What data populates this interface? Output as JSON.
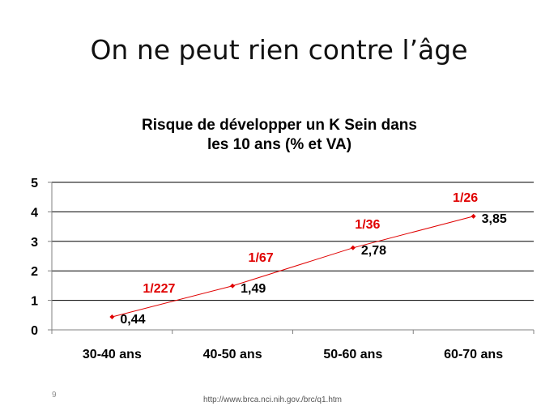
{
  "slide": {
    "title": "On ne peut rien contre l’âge",
    "number": "9",
    "source": "http://www.brca.nci.nih.gov./brc/q1.htm"
  },
  "colors": {
    "series": "#e00000",
    "annotation": "#e00000",
    "gridline": "#000000",
    "text": "#000000"
  },
  "chart_data": {
    "type": "line",
    "title_lines": [
      "Risque de développer un K Sein dans",
      "les 10 ans (% et VA)"
    ],
    "categories": [
      "30-40 ans",
      "40-50 ans",
      "50-60 ans",
      "60-70 ans"
    ],
    "values": [
      0.44,
      1.49,
      2.78,
      3.85
    ],
    "value_labels": [
      "0,44",
      "1,49",
      "2,78",
      "3,85"
    ],
    "annotations": [
      "1/227",
      "1/67",
      "1/36",
      "1/26"
    ],
    "yticks": [
      "0",
      "1",
      "2",
      "3",
      "4",
      "5"
    ],
    "ylim": [
      0,
      5
    ],
    "grid": true,
    "legend": "none",
    "xlabel": "",
    "ylabel": ""
  }
}
